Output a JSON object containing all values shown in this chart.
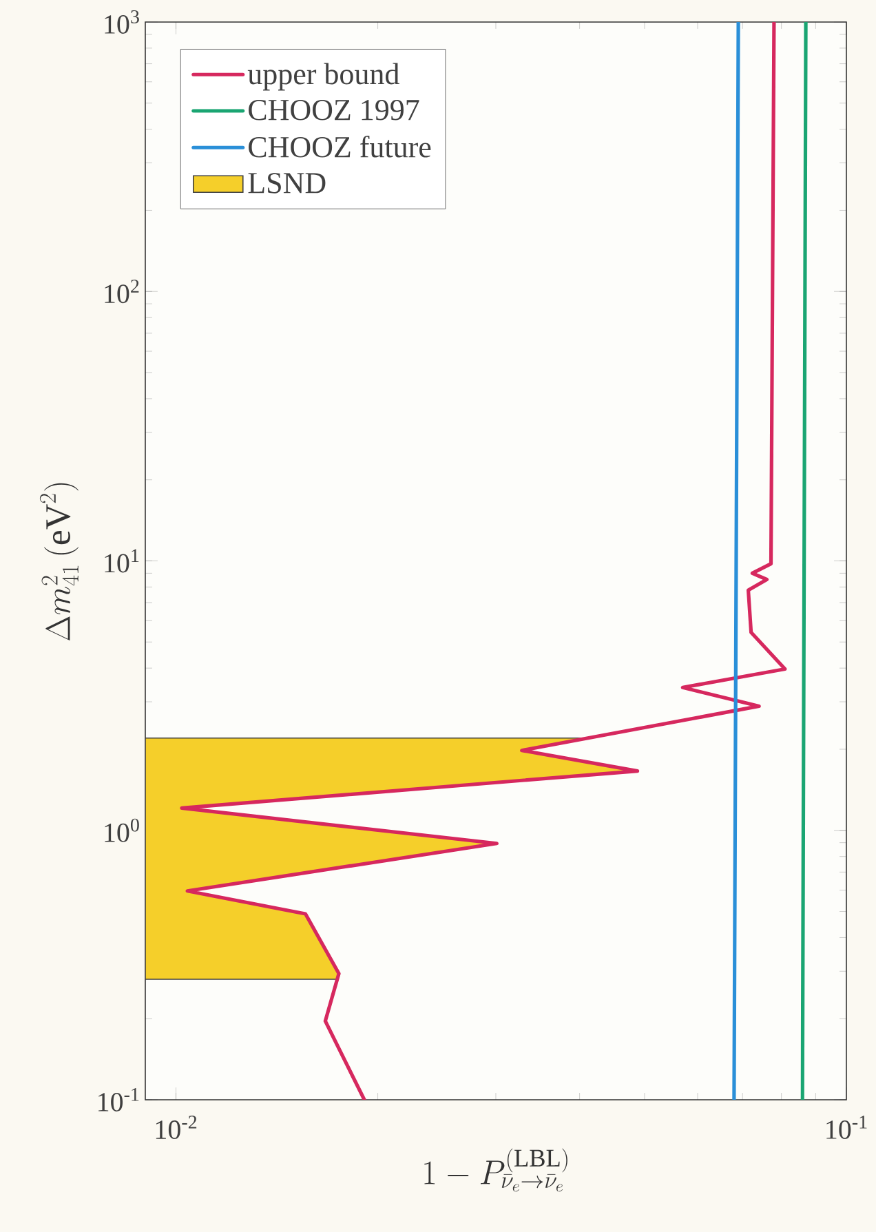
{
  "chart_data": {
    "type": "line",
    "xlabel": "1 - P^{(\\mathrm{LBL})}_{\\bar{\\nu}_e\\to\\bar{\\nu}_e}",
    "ylabel": "\\Delta m^{2}_{41}\\,(\\mathrm{eV}^{2})",
    "log": "xy",
    "xlim": [
      0.009,
      0.1
    ],
    "ylim": [
      0.1,
      1000
    ],
    "xticks": [
      {
        "value": 0.01,
        "label": "10$^{-2}$"
      },
      {
        "value": 0.1,
        "label": "10$^{-1}$"
      }
    ],
    "yticks": [
      {
        "value": 0.1,
        "label": "10$^{-1}$"
      },
      {
        "value": 1,
        "label": "10$^{0}$"
      },
      {
        "value": 10,
        "label": "10$^{1}$"
      },
      {
        "value": 100,
        "label": "10$^{2}$"
      },
      {
        "value": 1000,
        "label": "10$^{3}$"
      }
    ],
    "legend": "top left",
    "series": [
      {
        "name": "upper bound",
        "color": "#d6285e",
        "x": [
          0.0191,
          0.0167,
          0.0175,
          0.0156,
          0.0104,
          0.0301,
          0.0102,
          0.0488,
          0.0328,
          0.0741,
          0.057,
          0.081,
          0.0721,
          0.0714,
          0.0761,
          0.0724,
          0.0772,
          0.078
        ],
        "values": [
          0.1,
          0.196,
          0.294,
          0.49,
          0.596,
          0.894,
          1.21,
          1.66,
          1.98,
          2.89,
          3.39,
          3.97,
          5.43,
          7.79,
          8.53,
          9.0,
          9.76,
          1000
        ]
      },
      {
        "name": "CHOOZ 1997",
        "color": "#1aa572",
        "x": [
          0.086,
          0.087
        ],
        "values": [
          0.1,
          1000
        ]
      },
      {
        "name": "CHOOZ future",
        "color": "#2a8fd8",
        "x": [
          0.068,
          0.069
        ],
        "values": [
          0.1,
          1000
        ]
      }
    ],
    "bands": [
      {
        "axis": "y",
        "from": 0.28,
        "to": 2.2,
        "label": "LSND",
        "color": "#f5cf2a"
      }
    ]
  }
}
